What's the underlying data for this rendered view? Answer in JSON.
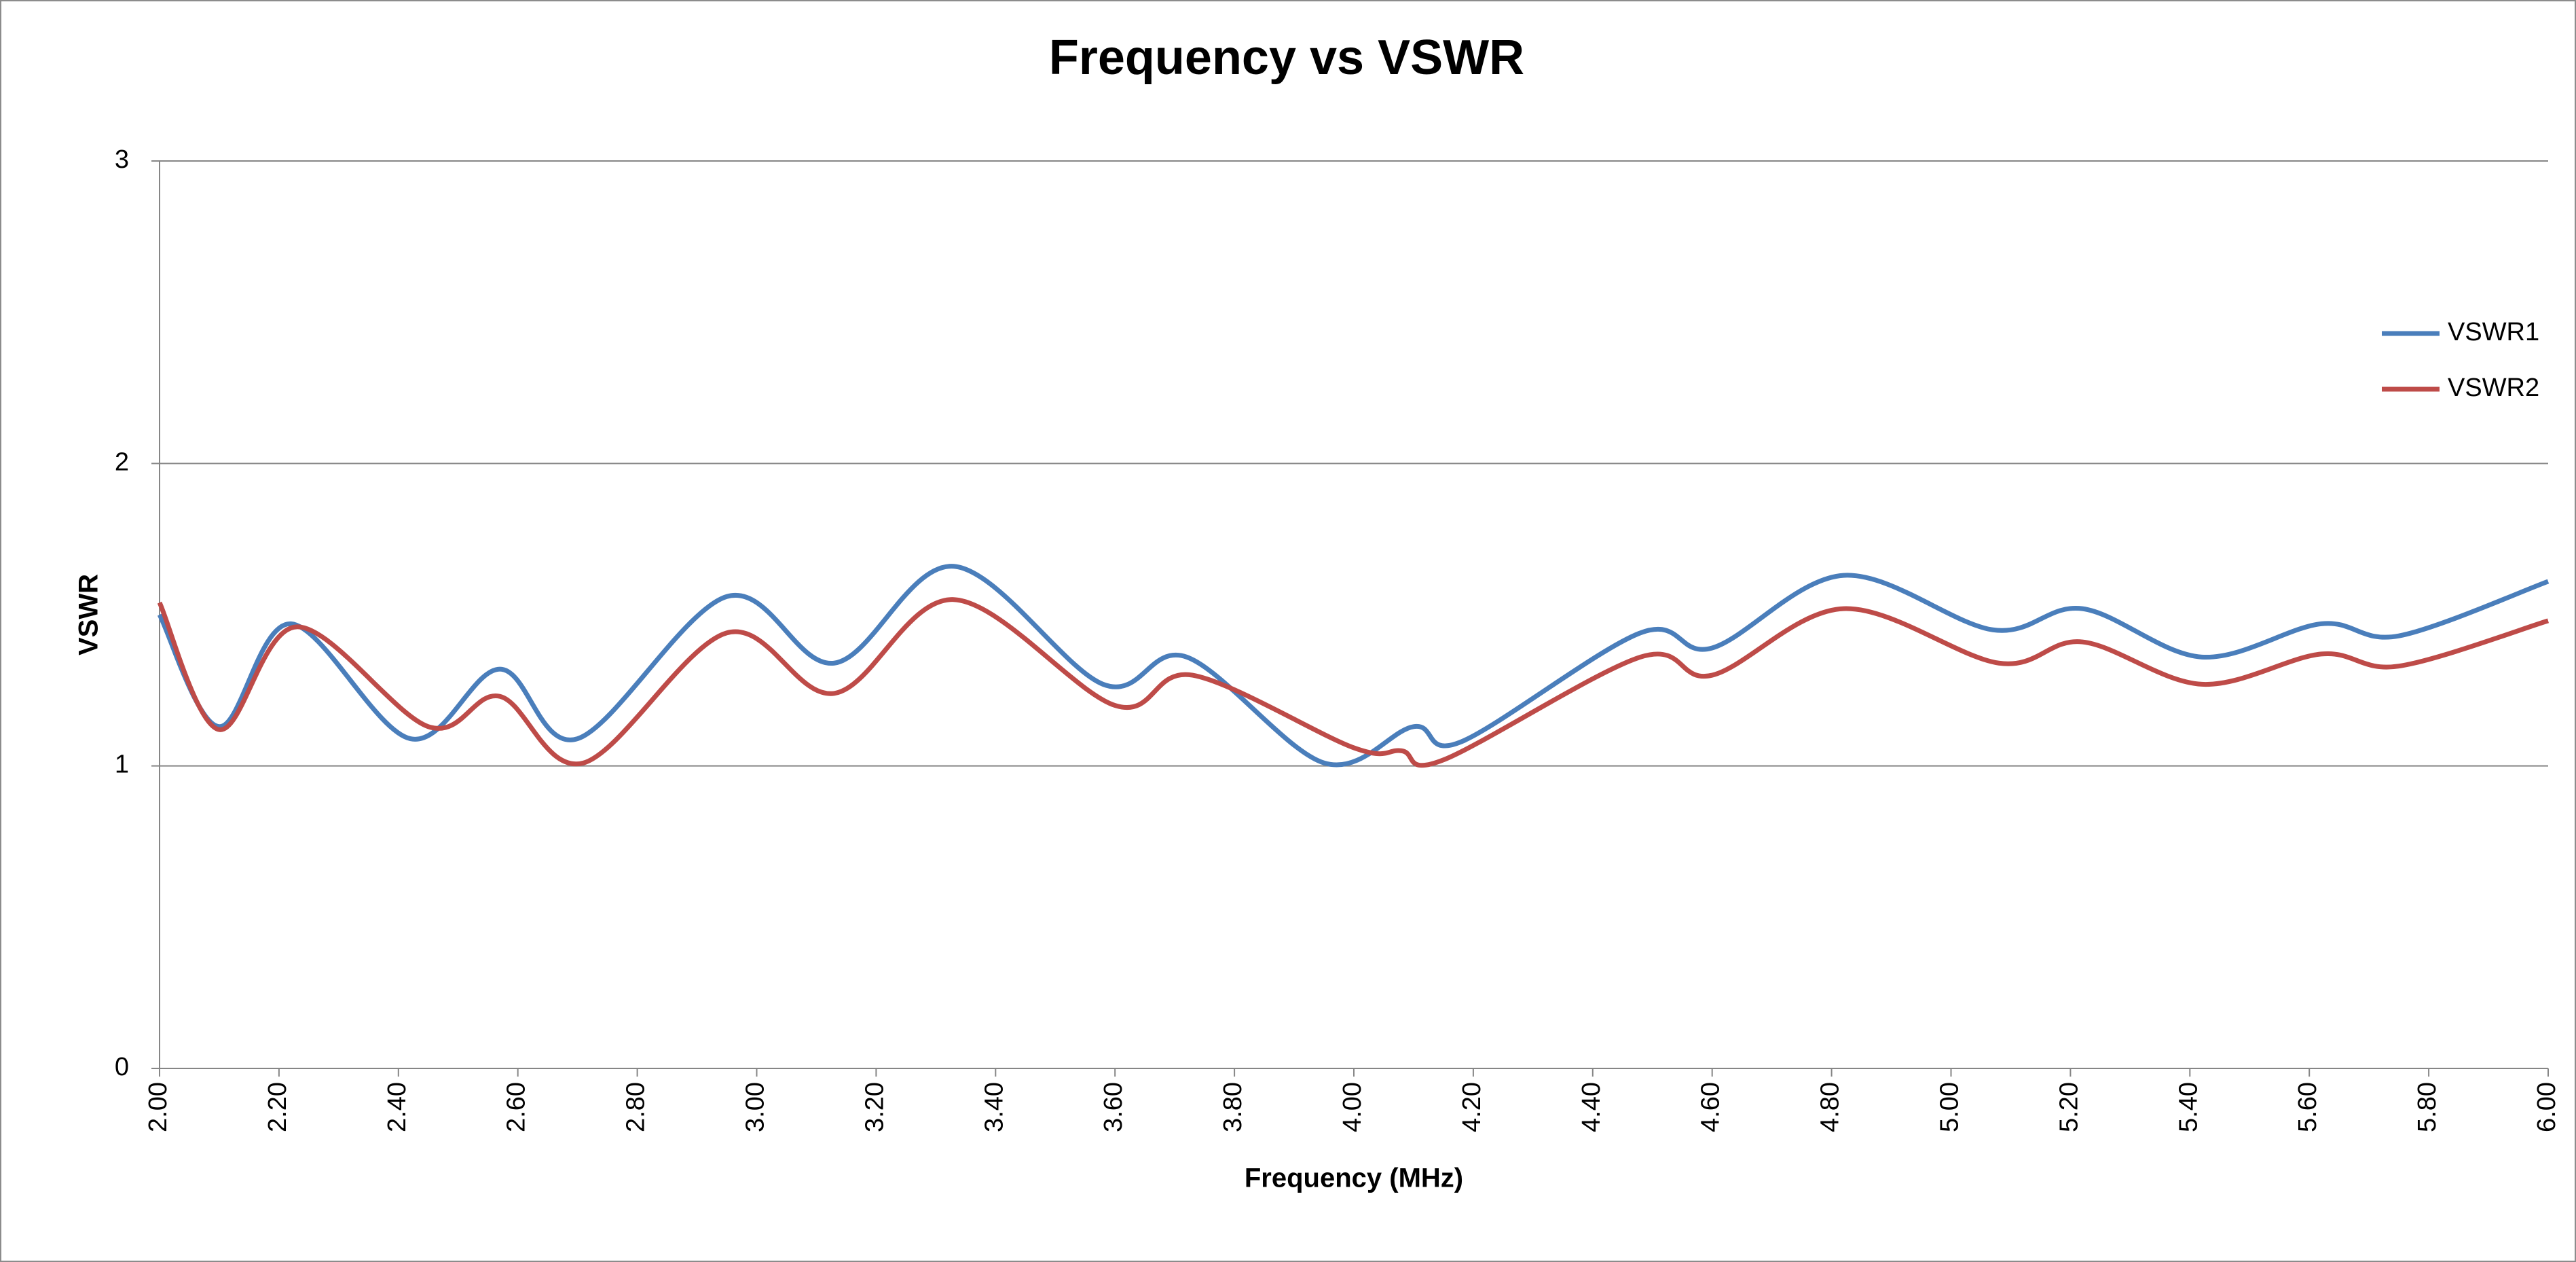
{
  "chart_data": {
    "type": "line",
    "title": "Frequency vs VSWR",
    "x_label": "Frequency (MHz)",
    "y_label": "VSWR",
    "xlim": [
      2.0,
      6.0
    ],
    "ylim": [
      0,
      3
    ],
    "xticks": [
      {
        "value": 2.0,
        "label": "2.00"
      },
      {
        "value": 2.2,
        "label": "2.20"
      },
      {
        "value": 2.4,
        "label": "2.40"
      },
      {
        "value": 2.6,
        "label": "2.60"
      },
      {
        "value": 2.8,
        "label": "2.80"
      },
      {
        "value": 3.0,
        "label": "3.00"
      },
      {
        "value": 3.2,
        "label": "3.20"
      },
      {
        "value": 3.4,
        "label": "3.40"
      },
      {
        "value": 3.6,
        "label": "3.60"
      },
      {
        "value": 3.8,
        "label": "3.80"
      },
      {
        "value": 4.0,
        "label": "4.00"
      },
      {
        "value": 4.2,
        "label": "4.20"
      },
      {
        "value": 4.4,
        "label": "4.40"
      },
      {
        "value": 4.6,
        "label": "4.60"
      },
      {
        "value": 4.8,
        "label": "4.80"
      },
      {
        "value": 5.0,
        "label": "5.00"
      },
      {
        "value": 5.2,
        "label": "5.20"
      },
      {
        "value": 5.4,
        "label": "5.40"
      },
      {
        "value": 5.6,
        "label": "5.60"
      },
      {
        "value": 5.8,
        "label": "5.80"
      },
      {
        "value": 6.0,
        "label": "6.00"
      }
    ],
    "yticks": [
      0,
      1,
      2,
      3
    ],
    "grid": true,
    "legend": "right",
    "series": [
      {
        "name": "VSWR1",
        "color": "#4a7ebb",
        "x": [
          2.0,
          2.1,
          2.22,
          2.42,
          2.57,
          2.7,
          2.95,
          3.13,
          3.33,
          3.58,
          3.72,
          3.95,
          4.1,
          4.18,
          4.48,
          4.6,
          4.82,
          5.07,
          5.22,
          5.42,
          5.62,
          5.75,
          6.0
        ],
        "values": [
          1.5,
          1.13,
          1.47,
          1.09,
          1.32,
          1.09,
          1.56,
          1.34,
          1.66,
          1.27,
          1.36,
          1.01,
          1.13,
          1.08,
          1.44,
          1.39,
          1.63,
          1.45,
          1.52,
          1.36,
          1.47,
          1.43,
          1.61
        ]
      },
      {
        "name": "VSWR2",
        "color": "#be4b48",
        "x": [
          2.0,
          2.1,
          2.23,
          2.45,
          2.57,
          2.71,
          2.95,
          3.13,
          3.33,
          3.6,
          3.73,
          4.0,
          4.08,
          4.15,
          4.48,
          4.6,
          4.82,
          5.08,
          5.22,
          5.42,
          5.62,
          5.75,
          6.0
        ],
        "values": [
          1.54,
          1.12,
          1.46,
          1.13,
          1.23,
          1.01,
          1.44,
          1.24,
          1.55,
          1.2,
          1.3,
          1.06,
          1.05,
          1.02,
          1.36,
          1.3,
          1.52,
          1.34,
          1.41,
          1.27,
          1.37,
          1.33,
          1.48
        ]
      }
    ]
  }
}
